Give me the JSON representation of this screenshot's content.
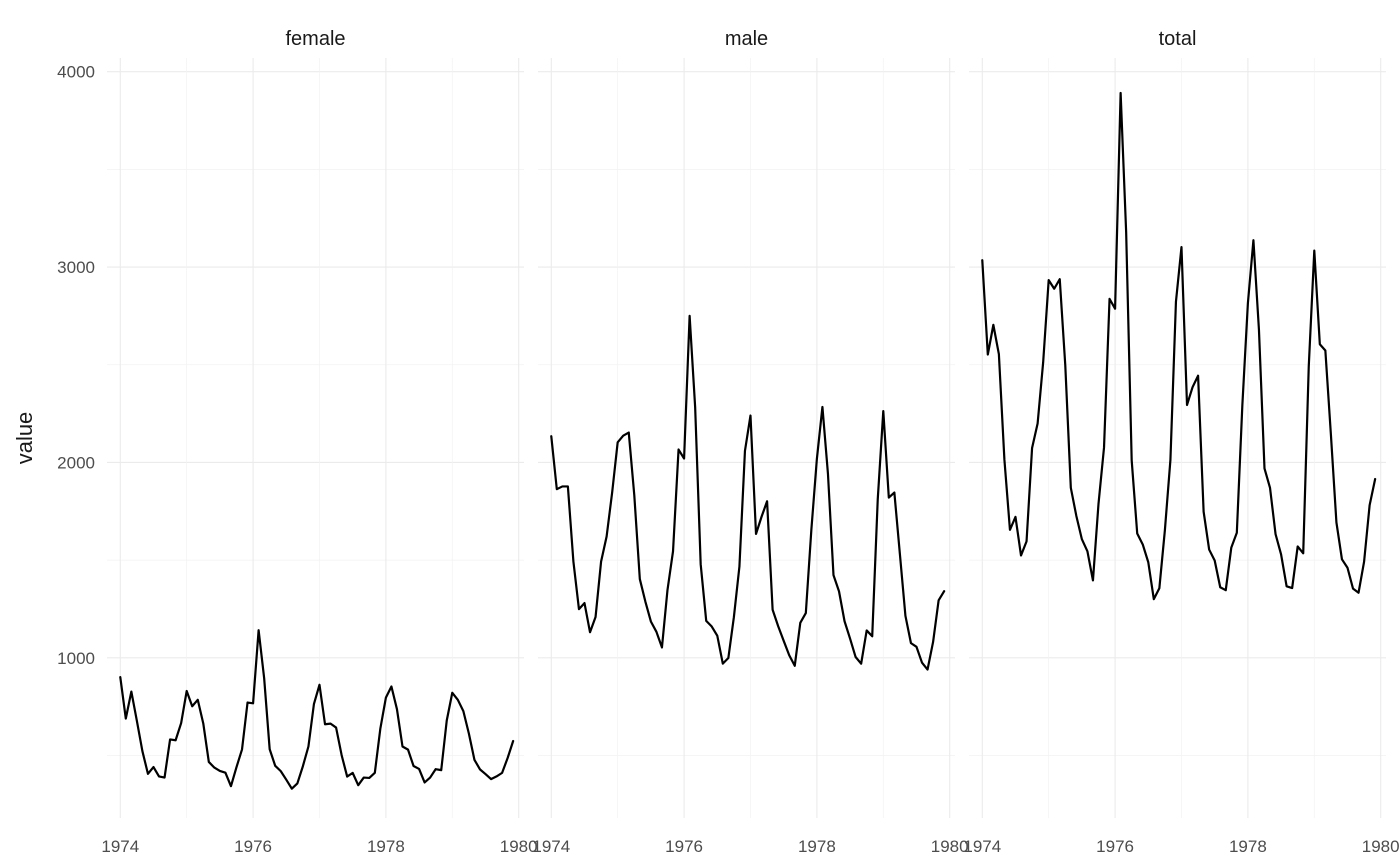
{
  "chart_data": {
    "type": "line",
    "facet": "free_x_shared_y",
    "ylabel": "value",
    "xlabel": "",
    "ylim": [
      180,
      4070
    ],
    "xlim": [
      1973.8,
      1980.08
    ],
    "y_ticks": [
      1000,
      2000,
      3000,
      4000
    ],
    "y_tick_labels": [
      "1000",
      "2000",
      "3000",
      "4000"
    ],
    "x_ticks": [
      1974,
      1976,
      1978,
      1980
    ],
    "x_tick_labels": [
      "1974",
      "1976",
      "1978",
      "1980"
    ],
    "grid": true,
    "line_color": "#000000",
    "x_start": 1974,
    "x_step": 0.08333333,
    "panels": [
      {
        "name": "female",
        "values": [
          901,
          689,
          827,
          677,
          522,
          406,
          441,
          393,
          387,
          582,
          578,
          666,
          830,
          752,
          785,
          664,
          467,
          438,
          421,
          412,
          343,
          440,
          531,
          771,
          767,
          1141,
          896,
          532,
          447,
          420,
          376,
          330,
          357,
          445,
          546,
          764,
          862,
          660,
          663,
          643,
          502,
          392,
          411,
          348,
          387,
          385,
          411,
          638,
          796,
          853,
          737,
          546,
          530,
          446,
          431,
          362,
          387,
          430,
          425,
          679,
          821,
          785,
          727,
          612,
          478,
          429,
          405,
          379,
          393,
          411,
          487,
          574
        ]
      },
      {
        "name": "male",
        "values": [
          2134,
          1863,
          1877,
          1877,
          1492,
          1249,
          1280,
          1131,
          1209,
          1492,
          1621,
          1846,
          2103,
          2137,
          2153,
          1833,
          1403,
          1288,
          1186,
          1133,
          1053,
          1347,
          1545,
          2066,
          2020,
          2750,
          2283,
          1479,
          1189,
          1160,
          1113,
          970,
          999,
          1208,
          1467,
          2059,
          2240,
          1634,
          1722,
          1801,
          1246,
          1162,
          1087,
          1013,
          959,
          1179,
          1229,
          1655,
          2019,
          2284,
          1942,
          1423,
          1340,
          1187,
          1098,
          1004,
          970,
          1140,
          1110,
          1812,
          2263,
          1820,
          1846,
          1531,
          1215,
          1075,
          1056,
          975,
          940,
          1081,
          1294,
          1341
        ]
      },
      {
        "name": "total",
        "values": [
          3035,
          2552,
          2704,
          2554,
          2014,
          1655,
          1721,
          1524,
          1596,
          2074,
          2199,
          2512,
          2933,
          2889,
          2938,
          2497,
          1870,
          1726,
          1607,
          1545,
          1396,
          1787,
          2076,
          2837,
          2787,
          3891,
          3179,
          2011,
          1636,
          1580,
          1489,
          1300,
          1356,
          1653,
          2013,
          2823,
          3102,
          2294,
          2385,
          2444,
          1748,
          1554,
          1498,
          1361,
          1346,
          1564,
          1640,
          2293,
          2815,
          3137,
          2679,
          1969,
          1870,
          1633,
          1529,
          1366,
          1357,
          1570,
          1535,
          2491,
          3084,
          2605,
          2573,
          2143,
          1693,
          1504,
          1461,
          1354,
          1333,
          1492,
          1781,
          1915
        ]
      }
    ]
  }
}
